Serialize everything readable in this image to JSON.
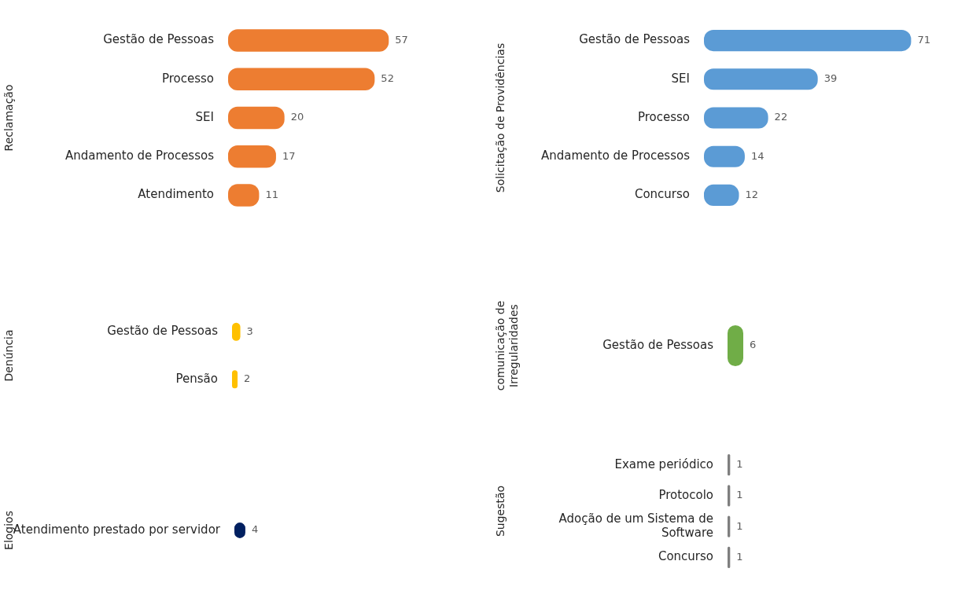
{
  "chart_data": [
    {
      "type": "bar",
      "orientation": "horizontal",
      "ylabel": "Reclamação",
      "categories": [
        "Gestão de Pessoas",
        "Processo",
        "SEI",
        "Andamento de Processos",
        "Atendimento"
      ],
      "values": [
        57,
        52,
        20,
        17,
        11
      ],
      "color": "#ed7d31",
      "data_labels": true,
      "grid": false,
      "legend": false
    },
    {
      "type": "bar",
      "orientation": "horizontal",
      "ylabel": "Solicitação de Providências",
      "categories": [
        "Gestão de Pessoas",
        "SEI",
        "Processo",
        "Andamento de Processos",
        "Concurso"
      ],
      "values": [
        71,
        39,
        22,
        14,
        12
      ],
      "color": "#5b9bd5",
      "data_labels": true,
      "grid": false,
      "legend": false
    },
    {
      "type": "bar",
      "orientation": "horizontal",
      "ylabel": "Denúncia",
      "categories": [
        "Gestão de Pessoas",
        "Pensão"
      ],
      "values": [
        3,
        2
      ],
      "color": "#ffc000",
      "data_labels": true,
      "grid": false,
      "legend": false
    },
    {
      "type": "bar",
      "orientation": "horizontal",
      "ylabel": "comunicação de Irregularidades",
      "categories": [
        "Gestão de Pessoas"
      ],
      "values": [
        6
      ],
      "color": "#70ad47",
      "data_labels": true,
      "grid": false,
      "legend": false
    },
    {
      "type": "bar",
      "orientation": "horizontal",
      "ylabel": "Elogios",
      "categories": [
        "Atendimento prestado por servidor"
      ],
      "values": [
        4
      ],
      "color": "#002060",
      "data_labels": true,
      "grid": false,
      "legend": false
    },
    {
      "type": "bar",
      "orientation": "horizontal",
      "ylabel": "Sugestão",
      "categories": [
        "Exame periódico",
        "Protocolo",
        "Adoção de um Sistema de Software",
        "Concurso"
      ],
      "values": [
        1,
        1,
        1,
        1
      ],
      "color": "#7f7f7f",
      "data_labels": true,
      "grid": false,
      "legend": false
    }
  ]
}
